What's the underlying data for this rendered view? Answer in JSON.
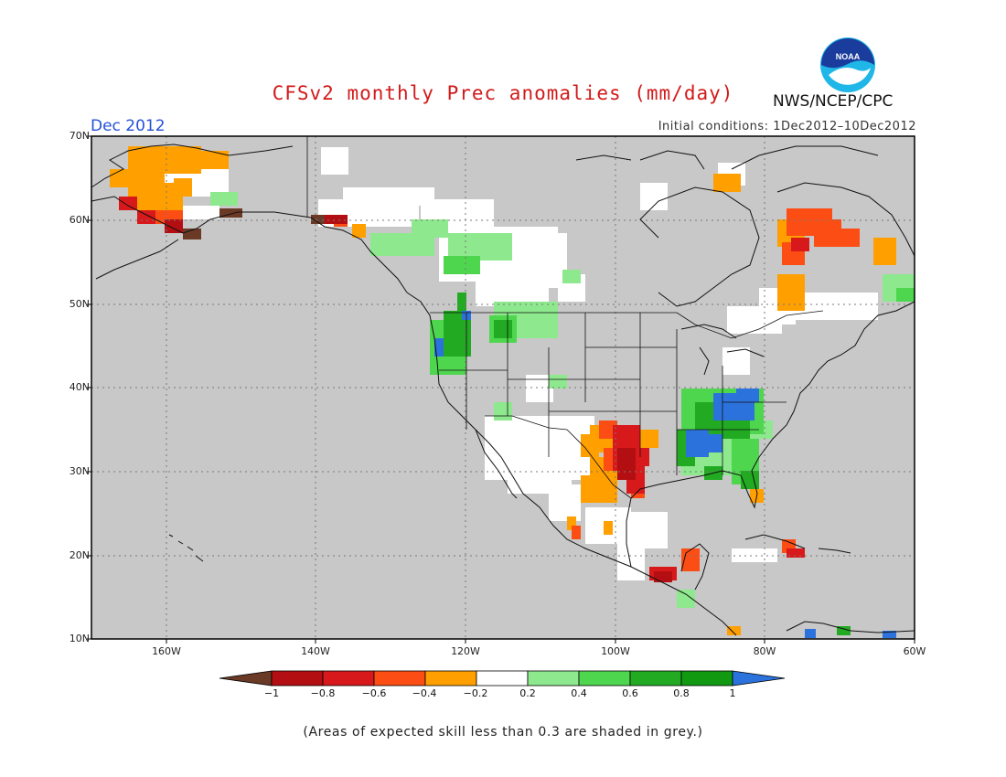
{
  "header": {
    "title": "CFSv2 monthly Prec anomalies (mm/day)",
    "month": "Dec 2012",
    "initial_conditions": "Initial conditions: 1Dec2012–10Dec2012",
    "agency": "NWS/NCEP/CPC",
    "logo_text": "NOAA"
  },
  "map": {
    "lat_labels": [
      "70N",
      "60N",
      "50N",
      "40N",
      "30N",
      "20N",
      "10N"
    ],
    "lon_labels": [
      "160W",
      "140W",
      "120W",
      "100W",
      "80W",
      "60W"
    ],
    "background_color": "#c8c8c8"
  },
  "colorbar": {
    "labels": [
      "−1",
      "−0.8",
      "−0.6",
      "−0.4",
      "−0.2",
      "0.2",
      "0.4",
      "0.6",
      "0.8",
      "1"
    ],
    "colors": [
      "#6b3a26",
      "#b30f12",
      "#d8191b",
      "#fc4d14",
      "#ff9f00",
      "#ffffff",
      "#8ee88e",
      "#4fd64f",
      "#22aa22",
      "#119911",
      "#2c72dd"
    ]
  },
  "footnote": "(Areas of expected skill less than 0.3 are shaded in grey.)"
}
